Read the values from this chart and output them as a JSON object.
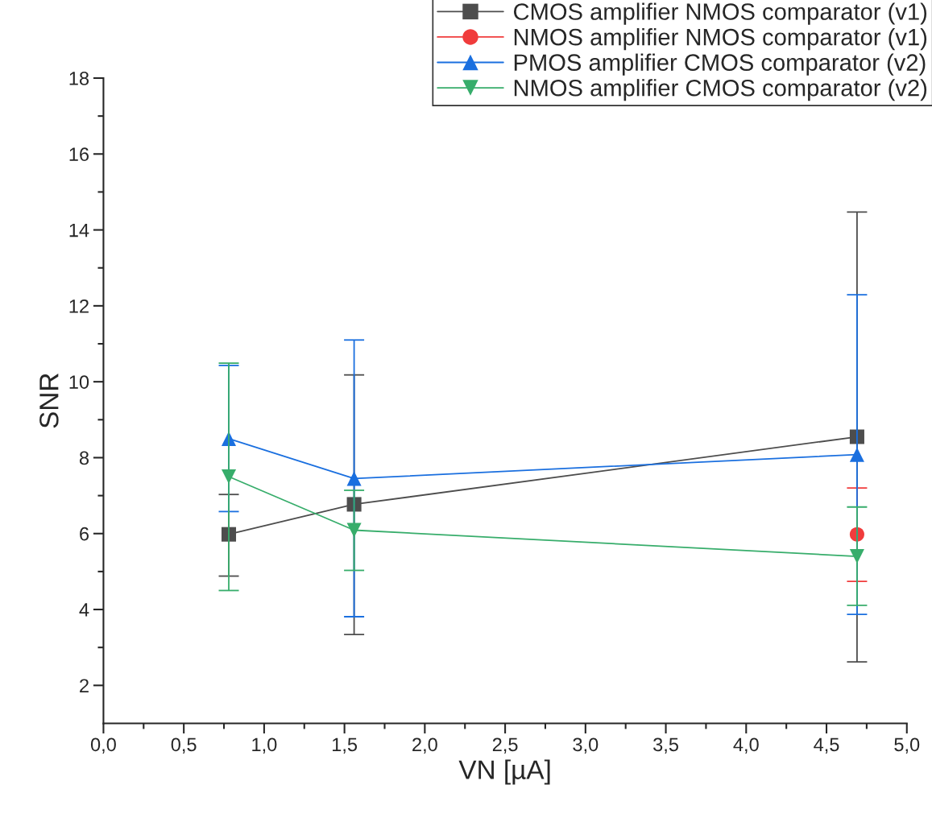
{
  "chart_data": {
    "type": "line",
    "xlabel": "VN [µA]",
    "ylabel": "SNR",
    "x": [
      0.78,
      1.56,
      4.69
    ],
    "xlim": [
      0,
      5
    ],
    "ylim": [
      1,
      18
    ],
    "xticks": [
      {
        "value": 0,
        "label": "0,0"
      },
      {
        "value": 0.5,
        "label": "0,5"
      },
      {
        "value": 1,
        "label": "1,0"
      },
      {
        "value": 1.5,
        "label": "1,5"
      },
      {
        "value": 2,
        "label": "2,0"
      },
      {
        "value": 2.5,
        "label": "2,5"
      },
      {
        "value": 3,
        "label": "3,0"
      },
      {
        "value": 3.5,
        "label": "3,5"
      },
      {
        "value": 4,
        "label": "4,0"
      },
      {
        "value": 4.5,
        "label": "4,5"
      },
      {
        "value": 5,
        "label": "5,0"
      }
    ],
    "yticks": [
      2,
      4,
      6,
      8,
      10,
      12,
      14,
      16,
      18
    ],
    "grid": false,
    "legend": "top right",
    "line_style": "solid",
    "series": [
      {
        "name": "CMOS amplifier NMOS comparator (v1)",
        "color": "#4d4d4d",
        "marker": "square",
        "values": [
          5.98,
          6.77,
          8.55
        ],
        "errors": [
          [
            4.88,
            7.03
          ],
          [
            3.34,
            10.18
          ],
          [
            2.62,
            14.47
          ]
        ]
      },
      {
        "name": "NMOS amplifier NMOS comparator (v1)",
        "color": "#f03c3c",
        "marker": "circle",
        "values": [
          null,
          null,
          5.98
        ],
        "errors": [
          null,
          null,
          [
            4.74,
            7.2
          ]
        ]
      },
      {
        "name": "PMOS amplifier CMOS comparator (v2)",
        "color": "#1a6fdf",
        "marker": "triangle",
        "values": [
          8.5,
          7.45,
          8.08
        ],
        "errors": [
          [
            6.58,
            10.43
          ],
          [
            3.81,
            11.1
          ],
          [
            3.87,
            12.29
          ]
        ]
      },
      {
        "name": "NMOS amplifier CMOS comparator (v2)",
        "color": "#37ad6b",
        "marker": "triangle_down",
        "values": [
          7.5,
          6.09,
          5.4
        ],
        "errors": [
          [
            4.5,
            10.49
          ],
          [
            5.03,
            7.14
          ],
          [
            4.11,
            6.7
          ]
        ]
      }
    ]
  }
}
